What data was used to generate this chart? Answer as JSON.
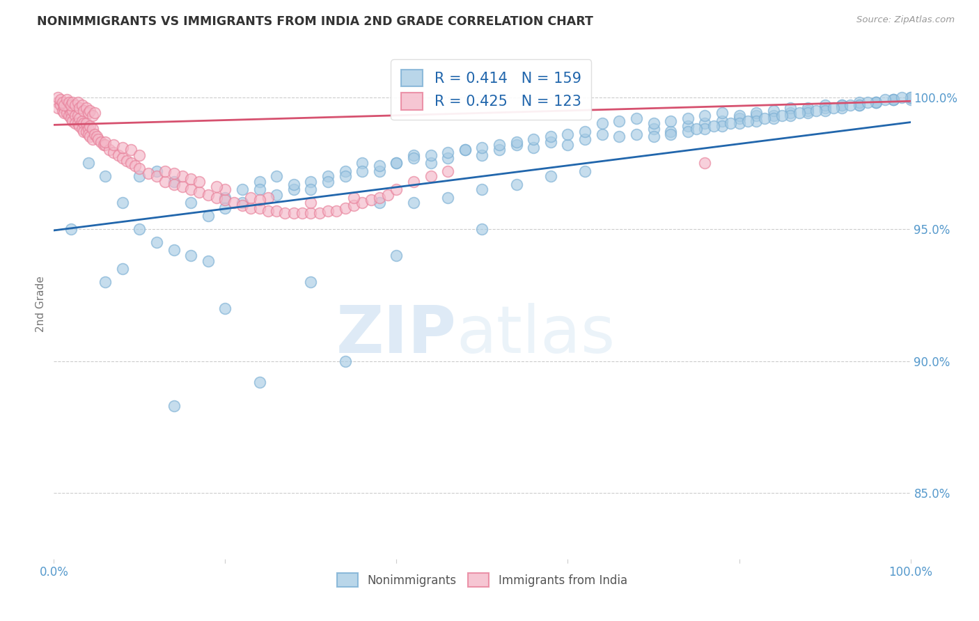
{
  "title": "NONIMMIGRANTS VS IMMIGRANTS FROM INDIA 2ND GRADE CORRELATION CHART",
  "source": "Source: ZipAtlas.com",
  "ylabel": "2nd Grade",
  "legend_blue_label": "Nonimmigrants",
  "legend_pink_label": "Immigrants from India",
  "R_blue": 0.414,
  "N_blue": 159,
  "R_pink": 0.425,
  "N_pink": 123,
  "blue_color": "#a8cce4",
  "pink_color": "#f4b8c8",
  "blue_edge_color": "#7bafd4",
  "pink_edge_color": "#e8809a",
  "blue_line_color": "#2166ac",
  "pink_line_color": "#d6516f",
  "watermark_zip": "ZIP",
  "watermark_atlas": "atlas",
  "bg_color": "#ffffff",
  "grid_color": "#cccccc",
  "xlim": [
    0.0,
    1.0
  ],
  "ylim": [
    0.825,
    1.018
  ],
  "blue_line_y0": 0.9495,
  "blue_line_y1": 0.9905,
  "pink_line_y0": 0.9895,
  "pink_line_y1": 0.9985,
  "blue_scatter_x": [
    0.02,
    0.04,
    0.06,
    0.08,
    0.1,
    0.12,
    0.14,
    0.16,
    0.18,
    0.2,
    0.22,
    0.24,
    0.26,
    0.28,
    0.3,
    0.32,
    0.34,
    0.36,
    0.38,
    0.4,
    0.42,
    0.44,
    0.46,
    0.48,
    0.5,
    0.52,
    0.54,
    0.56,
    0.58,
    0.6,
    0.62,
    0.64,
    0.66,
    0.68,
    0.7,
    0.72,
    0.74,
    0.76,
    0.78,
    0.8,
    0.82,
    0.84,
    0.86,
    0.88,
    0.9,
    0.92,
    0.94,
    0.96,
    0.98,
    1.0,
    0.64,
    0.66,
    0.68,
    0.7,
    0.72,
    0.74,
    0.76,
    0.78,
    0.8,
    0.82,
    0.84,
    0.86,
    0.88,
    0.9,
    0.92,
    0.94,
    0.96,
    0.98,
    1.0,
    0.7,
    0.72,
    0.74,
    0.76,
    0.78,
    0.8,
    0.82,
    0.84,
    0.86,
    0.88,
    0.9,
    0.92,
    0.94,
    0.96,
    0.98,
    1.0,
    0.75,
    0.77,
    0.79,
    0.81,
    0.83,
    0.85,
    0.87,
    0.89,
    0.91,
    0.93,
    0.95,
    0.97,
    0.99,
    0.2,
    0.22,
    0.24,
    0.26,
    0.28,
    0.3,
    0.32,
    0.34,
    0.36,
    0.38,
    0.4,
    0.42,
    0.44,
    0.46,
    0.48,
    0.5,
    0.52,
    0.54,
    0.56,
    0.58,
    0.6,
    0.62,
    0.1,
    0.12,
    0.14,
    0.16,
    0.18,
    0.08,
    0.06,
    0.38,
    0.42,
    0.46,
    0.5,
    0.54,
    0.58,
    0.62,
    0.2,
    0.3,
    0.4,
    0.5,
    0.14,
    0.24,
    0.34
  ],
  "blue_scatter_y": [
    0.95,
    0.975,
    0.97,
    0.96,
    0.97,
    0.972,
    0.968,
    0.96,
    0.955,
    0.962,
    0.965,
    0.968,
    0.97,
    0.965,
    0.968,
    0.97,
    0.972,
    0.975,
    0.972,
    0.975,
    0.978,
    0.975,
    0.977,
    0.98,
    0.978,
    0.98,
    0.982,
    0.981,
    0.983,
    0.982,
    0.984,
    0.986,
    0.985,
    0.986,
    0.988,
    0.987,
    0.989,
    0.99,
    0.991,
    0.992,
    0.993,
    0.993,
    0.994,
    0.995,
    0.996,
    0.997,
    0.997,
    0.998,
    0.999,
    0.999,
    0.99,
    0.991,
    0.992,
    0.99,
    0.991,
    0.992,
    0.993,
    0.994,
    0.993,
    0.994,
    0.995,
    0.996,
    0.996,
    0.997,
    0.997,
    0.998,
    0.998,
    0.999,
    1.0,
    0.985,
    0.986,
    0.987,
    0.988,
    0.989,
    0.99,
    0.991,
    0.992,
    0.993,
    0.994,
    0.995,
    0.996,
    0.997,
    0.998,
    0.999,
    1.0,
    0.988,
    0.989,
    0.99,
    0.991,
    0.992,
    0.993,
    0.994,
    0.995,
    0.996,
    0.997,
    0.998,
    0.999,
    1.0,
    0.958,
    0.96,
    0.965,
    0.963,
    0.967,
    0.965,
    0.968,
    0.97,
    0.972,
    0.974,
    0.975,
    0.977,
    0.978,
    0.979,
    0.98,
    0.981,
    0.982,
    0.983,
    0.984,
    0.985,
    0.986,
    0.987,
    0.95,
    0.945,
    0.942,
    0.94,
    0.938,
    0.935,
    0.93,
    0.96,
    0.96,
    0.962,
    0.965,
    0.967,
    0.97,
    0.972,
    0.92,
    0.93,
    0.94,
    0.95,
    0.883,
    0.892,
    0.9
  ],
  "pink_scatter_x": [
    0.005,
    0.005,
    0.008,
    0.01,
    0.01,
    0.012,
    0.012,
    0.015,
    0.015,
    0.018,
    0.018,
    0.02,
    0.02,
    0.022,
    0.022,
    0.025,
    0.025,
    0.028,
    0.028,
    0.03,
    0.03,
    0.033,
    0.033,
    0.035,
    0.035,
    0.038,
    0.038,
    0.04,
    0.04,
    0.042,
    0.042,
    0.045,
    0.045,
    0.048,
    0.05,
    0.052,
    0.055,
    0.058,
    0.06,
    0.065,
    0.07,
    0.075,
    0.08,
    0.085,
    0.09,
    0.095,
    0.1,
    0.11,
    0.12,
    0.13,
    0.14,
    0.15,
    0.16,
    0.17,
    0.18,
    0.19,
    0.2,
    0.21,
    0.22,
    0.23,
    0.24,
    0.25,
    0.26,
    0.27,
    0.28,
    0.29,
    0.3,
    0.31,
    0.32,
    0.33,
    0.34,
    0.35,
    0.36,
    0.37,
    0.38,
    0.39,
    0.4,
    0.42,
    0.44,
    0.46,
    0.005,
    0.008,
    0.01,
    0.012,
    0.015,
    0.018,
    0.02,
    0.022,
    0.025,
    0.028,
    0.03,
    0.033,
    0.035,
    0.038,
    0.04,
    0.042,
    0.045,
    0.048,
    0.15,
    0.2,
    0.25,
    0.3,
    0.35,
    0.06,
    0.07,
    0.08,
    0.09,
    0.1,
    0.76,
    0.13,
    0.14,
    0.16,
    0.17,
    0.19,
    0.23,
    0.24
  ],
  "pink_scatter_y": [
    0.998,
    0.996,
    0.997,
    0.998,
    0.995,
    0.996,
    0.994,
    0.997,
    0.994,
    0.996,
    0.993,
    0.994,
    0.992,
    0.995,
    0.991,
    0.993,
    0.99,
    0.993,
    0.99,
    0.992,
    0.989,
    0.991,
    0.988,
    0.99,
    0.987,
    0.99,
    0.987,
    0.988,
    0.986,
    0.989,
    0.985,
    0.988,
    0.984,
    0.986,
    0.985,
    0.984,
    0.983,
    0.982,
    0.982,
    0.98,
    0.979,
    0.978,
    0.977,
    0.976,
    0.975,
    0.974,
    0.973,
    0.971,
    0.97,
    0.968,
    0.967,
    0.966,
    0.965,
    0.964,
    0.963,
    0.962,
    0.961,
    0.96,
    0.959,
    0.958,
    0.958,
    0.957,
    0.957,
    0.956,
    0.956,
    0.956,
    0.956,
    0.956,
    0.957,
    0.957,
    0.958,
    0.959,
    0.96,
    0.961,
    0.962,
    0.963,
    0.965,
    0.968,
    0.97,
    0.972,
    1.0,
    0.999,
    0.998,
    0.997,
    0.999,
    0.998,
    0.997,
    0.998,
    0.997,
    0.998,
    0.996,
    0.997,
    0.995,
    0.996,
    0.994,
    0.995,
    0.993,
    0.994,
    0.97,
    0.965,
    0.962,
    0.96,
    0.962,
    0.983,
    0.982,
    0.981,
    0.98,
    0.978,
    0.975,
    0.972,
    0.971,
    0.969,
    0.968,
    0.966,
    0.962,
    0.961
  ]
}
